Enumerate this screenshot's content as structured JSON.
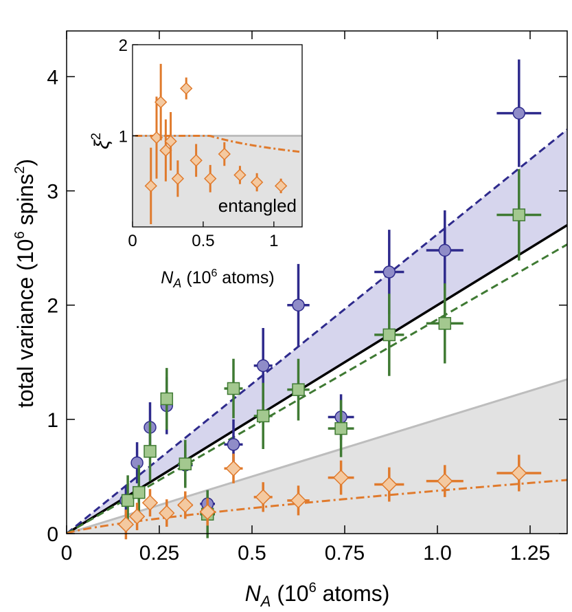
{
  "chart_data": [
    {
      "type": "scatter",
      "xlabel_var": "N",
      "xlabel_sub": "A",
      "xlabel_unit": "(10",
      "xlabel_exp": "6",
      "xlabel_tail": " atoms)",
      "ylabel_main": "total variance (10",
      "ylabel_exp1": "6",
      "ylabel_mid": " spins",
      "ylabel_exp2": "2",
      "ylabel_tail": ")",
      "xlim": [
        0,
        1.35
      ],
      "ylim": [
        0,
        4.4
      ],
      "xticks": [
        0,
        0.25,
        0.5,
        0.75,
        1.0,
        1.25
      ],
      "xtick_labels": [
        "0",
        "0.25",
        "0.5",
        "0.75",
        "1.0",
        "1.25"
      ],
      "yticks": [
        0,
        1,
        2,
        3,
        4
      ],
      "ytick_labels": [
        "0",
        "1",
        "2",
        "3",
        "4"
      ],
      "colors": {
        "blue": "#2e2a8c",
        "blue_fill": "#8f8cc8",
        "green": "#3f7a33",
        "green_fill": "#a3c88f",
        "orange": "#e07a2c",
        "orange_fill": "#f4c9a0",
        "gray_region": "#e2e2e2",
        "gray_line": "#bdbdbd",
        "band": "#d6d5ed"
      },
      "lines": {
        "black_slope": 2.0,
        "blue_dashed_slope": 2.62,
        "green_dashed_slope": 1.875,
        "gray_slope": 1.0,
        "orange_fit": {
          "a": 0.375,
          "p": 0.75
        }
      },
      "series": [
        {
          "marker": "circle",
          "color": "blue",
          "points": [
            {
              "x": 0.16,
              "y": 0.29,
              "yerr": 0.13,
              "xerr": 0.015
            },
            {
              "x": 0.19,
              "y": 0.62,
              "yerr": 0.18,
              "xerr": 0.015
            },
            {
              "x": 0.225,
              "y": 0.93,
              "yerr": 0.22,
              "xerr": 0.015
            },
            {
              "x": 0.27,
              "y": 1.12,
              "yerr": 0.25,
              "xerr": 0.015
            },
            {
              "x": 0.32,
              "y": 0.6,
              "yerr": 0.18,
              "xerr": 0.02
            },
            {
              "x": 0.38,
              "y": 0.26,
              "yerr": 0.12,
              "xerr": 0.02
            },
            {
              "x": 0.45,
              "y": 0.78,
              "yerr": 0.22,
              "xerr": 0.025
            },
            {
              "x": 0.53,
              "y": 1.47,
              "yerr": 0.33,
              "xerr": 0.025
            },
            {
              "x": 0.625,
              "y": 2.0,
              "yerr": 0.36,
              "xerr": 0.03
            },
            {
              "x": 0.74,
              "y": 1.02,
              "yerr": 0.2,
              "xerr": 0.035
            },
            {
              "x": 0.87,
              "y": 2.29,
              "yerr": 0.37,
              "xerr": 0.04
            },
            {
              "x": 1.02,
              "y": 2.48,
              "yerr": 0.35,
              "xerr": 0.05
            },
            {
              "x": 1.22,
              "y": 3.68,
              "yerr": 0.47,
              "xerr": 0.06
            }
          ]
        },
        {
          "marker": "square",
          "color": "green",
          "points": [
            {
              "x": 0.165,
              "y": 0.29,
              "yerr": 0.22,
              "xerr": 0.015
            },
            {
              "x": 0.195,
              "y": 0.36,
              "yerr": 0.24,
              "xerr": 0.015
            },
            {
              "x": 0.225,
              "y": 0.72,
              "yerr": 0.26,
              "xerr": 0.015
            },
            {
              "x": 0.27,
              "y": 1.18,
              "yerr": 0.27,
              "xerr": 0.015
            },
            {
              "x": 0.32,
              "y": 0.61,
              "yerr": 0.21,
              "xerr": 0.02
            },
            {
              "x": 0.38,
              "y": 0.17,
              "yerr": 0.21,
              "xerr": 0.02
            },
            {
              "x": 0.45,
              "y": 1.27,
              "yerr": 0.26,
              "xerr": 0.025
            },
            {
              "x": 0.53,
              "y": 1.03,
              "yerr": 0.29,
              "xerr": 0.025
            },
            {
              "x": 0.625,
              "y": 1.26,
              "yerr": 0.27,
              "xerr": 0.03
            },
            {
              "x": 0.74,
              "y": 0.92,
              "yerr": 0.25,
              "xerr": 0.035
            },
            {
              "x": 0.87,
              "y": 1.74,
              "yerr": 0.36,
              "xerr": 0.04
            },
            {
              "x": 1.02,
              "y": 1.84,
              "yerr": 0.35,
              "xerr": 0.05
            },
            {
              "x": 1.22,
              "y": 2.79,
              "yerr": 0.4,
              "xerr": 0.06
            }
          ]
        },
        {
          "marker": "diamond",
          "color": "orange",
          "points": [
            {
              "x": 0.16,
              "y": 0.08,
              "yerr": 0.13,
              "xerr": 0.015
            },
            {
              "x": 0.19,
              "y": 0.15,
              "yerr": 0.12,
              "xerr": 0.015
            },
            {
              "x": 0.225,
              "y": 0.27,
              "yerr": 0.12,
              "xerr": 0.015
            },
            {
              "x": 0.27,
              "y": 0.18,
              "yerr": 0.12,
              "xerr": 0.015
            },
            {
              "x": 0.32,
              "y": 0.25,
              "yerr": 0.12,
              "xerr": 0.02
            },
            {
              "x": 0.38,
              "y": 0.19,
              "yerr": 0.12,
              "xerr": 0.02
            },
            {
              "x": 0.45,
              "y": 0.57,
              "yerr": 0.13,
              "xerr": 0.025
            },
            {
              "x": 0.53,
              "y": 0.32,
              "yerr": 0.13,
              "xerr": 0.025
            },
            {
              "x": 0.625,
              "y": 0.29,
              "yerr": 0.13,
              "xerr": 0.03
            },
            {
              "x": 0.74,
              "y": 0.49,
              "yerr": 0.15,
              "xerr": 0.035
            },
            {
              "x": 0.87,
              "y": 0.43,
              "yerr": 0.15,
              "xerr": 0.04
            },
            {
              "x": 1.02,
              "y": 0.46,
              "yerr": 0.14,
              "xerr": 0.05
            },
            {
              "x": 1.22,
              "y": 0.53,
              "yerr": 0.16,
              "xerr": 0.06
            }
          ]
        }
      ]
    },
    {
      "type": "scatter",
      "inset": true,
      "ylabel_var": "ξ",
      "ylabel_exp": "2",
      "xlabel_var": "N",
      "xlabel_sub": "A",
      "xlabel_unit": "(10",
      "xlabel_exp": "6",
      "xlabel_tail": " atoms)",
      "region_label": "entangled",
      "xlim": [
        0,
        1.2
      ],
      "ylim": [
        0,
        2
      ],
      "xticks": [
        0,
        0.5,
        1
      ],
      "xtick_labels": [
        "0",
        "0.5",
        "1"
      ],
      "yticks": [
        1,
        2
      ],
      "ytick_labels": [
        "1",
        "2"
      ],
      "threshold": 1,
      "fit": {
        "a": 0.86,
        "p": -0.25
      },
      "series": [
        {
          "marker": "diamond",
          "color": "orange",
          "points": [
            {
              "x": 0.13,
              "y": 0.45,
              "yerr": 0.42
            },
            {
              "x": 0.17,
              "y": 0.98,
              "yerr": 0.45
            },
            {
              "x": 0.2,
              "y": 1.37,
              "yerr": 0.42
            },
            {
              "x": 0.235,
              "y": 0.84,
              "yerr": 0.34
            },
            {
              "x": 0.27,
              "y": 0.94,
              "yerr": 0.32
            },
            {
              "x": 0.32,
              "y": 0.53,
              "yerr": 0.2
            },
            {
              "x": 0.38,
              "y": 1.52,
              "yerr": 0.12
            },
            {
              "x": 0.45,
              "y": 0.73,
              "yerr": 0.18
            },
            {
              "x": 0.55,
              "y": 0.53,
              "yerr": 0.15
            },
            {
              "x": 0.65,
              "y": 0.8,
              "yerr": 0.13
            },
            {
              "x": 0.76,
              "y": 0.57,
              "yerr": 0.1
            },
            {
              "x": 0.88,
              "y": 0.49,
              "yerr": 0.1
            },
            {
              "x": 1.05,
              "y": 0.45,
              "yerr": 0.08
            }
          ]
        }
      ]
    }
  ]
}
